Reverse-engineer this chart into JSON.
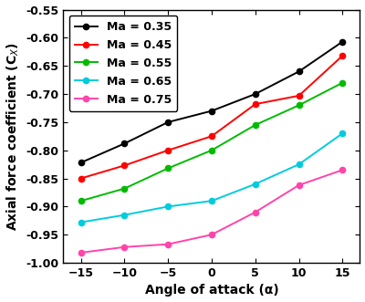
{
  "x": [
    -15,
    -10,
    -5,
    0,
    5,
    10,
    15
  ],
  "series": [
    {
      "label": "Ma = 0.35",
      "color": "#000000",
      "marker": "o",
      "values": [
        -0.822,
        -0.788,
        -0.75,
        -0.73,
        -0.7,
        -0.66,
        -0.607
      ]
    },
    {
      "label": "Ma = 0.45",
      "color": "#ff0000",
      "marker": "o",
      "values": [
        -0.85,
        -0.827,
        -0.8,
        -0.775,
        -0.718,
        -0.703,
        -0.632
      ]
    },
    {
      "label": "Ma = 0.55",
      "color": "#00bb00",
      "marker": "o",
      "values": [
        -0.89,
        -0.868,
        -0.832,
        -0.8,
        -0.755,
        -0.72,
        -0.68
      ]
    },
    {
      "label": "Ma = 0.65",
      "color": "#00ccdd",
      "marker": "o",
      "values": [
        -0.928,
        -0.915,
        -0.9,
        -0.89,
        -0.86,
        -0.825,
        -0.77
      ]
    },
    {
      "label": "Ma = 0.75",
      "color": "#ff44aa",
      "marker": "o",
      "values": [
        -0.982,
        -0.972,
        -0.967,
        -0.95,
        -0.91,
        -0.862,
        -0.835
      ]
    }
  ],
  "xlabel": "Angle of attack (α)",
  "ylabel": "Axial force coefficient (C$_X$)",
  "xlim": [
    -17,
    17
  ],
  "ylim": [
    -1.0,
    -0.55
  ],
  "xticks": [
    -15,
    -10,
    -5,
    0,
    5,
    10,
    15
  ],
  "yticks": [
    -1.0,
    -0.95,
    -0.9,
    -0.85,
    -0.8,
    -0.75,
    -0.7,
    -0.65,
    -0.6,
    -0.55
  ],
  "legend_loc": "upper left",
  "background_color": "#ffffff",
  "marker_size": 4.5,
  "linewidth": 1.4,
  "label_fontsize": 10,
  "tick_fontsize": 9,
  "legend_fontsize": 9
}
